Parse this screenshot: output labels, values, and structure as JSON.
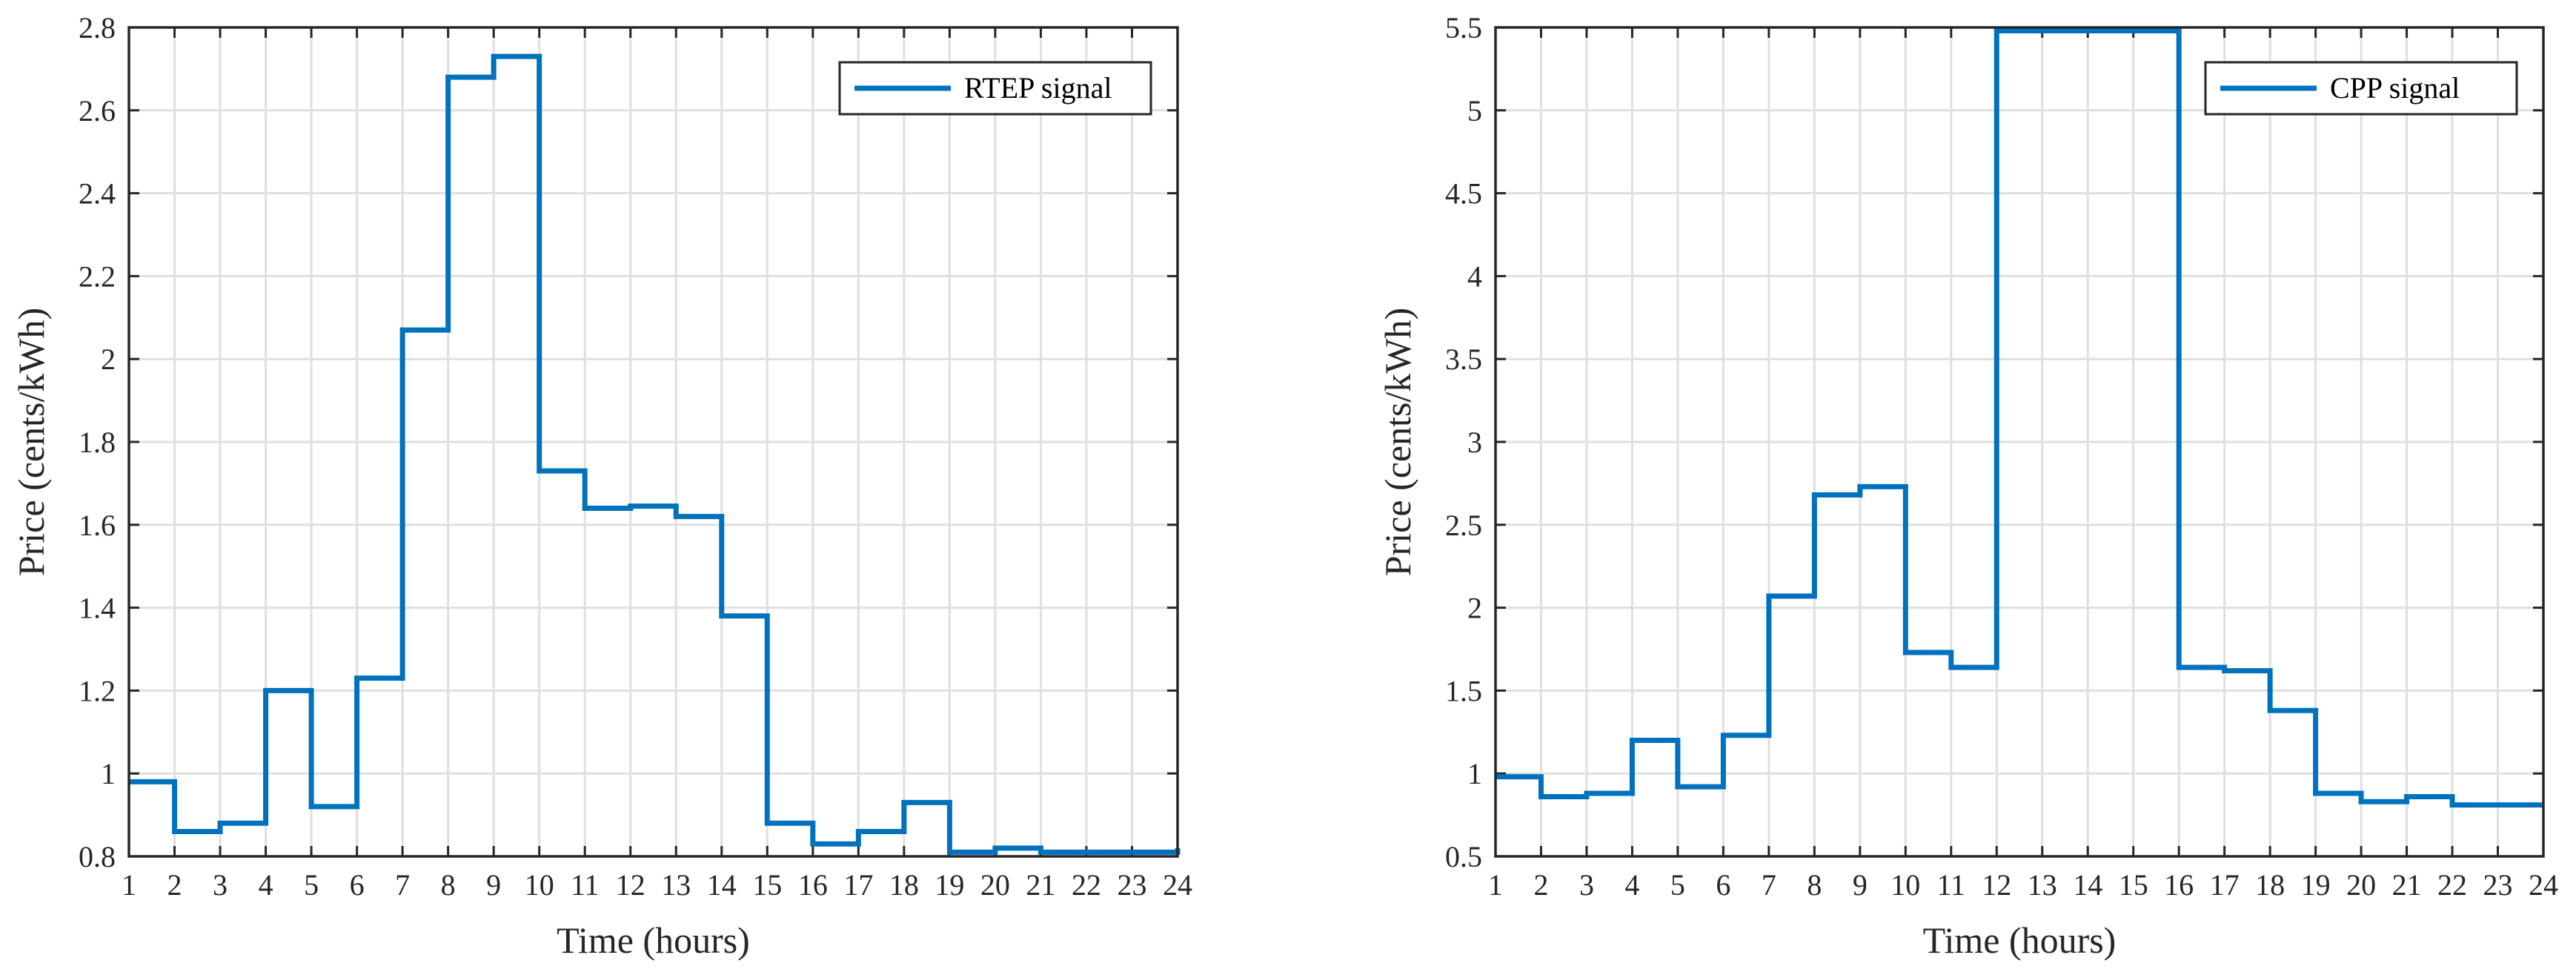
{
  "chart_data": [
    {
      "type": "line",
      "step": "post",
      "x": [
        1,
        2,
        3,
        4,
        5,
        6,
        7,
        8,
        9,
        10,
        11,
        12,
        13,
        14,
        15,
        16,
        17,
        18,
        19,
        20,
        21,
        22,
        23,
        24
      ],
      "series": [
        {
          "name": "RTEP signal",
          "values": [
            0.98,
            0.86,
            0.88,
            1.2,
            0.92,
            1.23,
            2.07,
            2.68,
            2.73,
            1.73,
            1.64,
            1.645,
            1.62,
            1.38,
            0.88,
            0.83,
            0.86,
            0.93,
            0.81,
            0.82,
            0.81,
            0.81,
            0.81,
            0.82
          ]
        }
      ],
      "title": "",
      "xlabel": "Time (hours)",
      "ylabel": "Price (cents/kWh)",
      "xlim": [
        1,
        24
      ],
      "ylim": [
        0.8,
        2.8
      ],
      "xticks": [
        "1",
        "2",
        "3",
        "4",
        "5",
        "6",
        "7",
        "8",
        "9",
        "10",
        "11",
        "12",
        "13",
        "14",
        "15",
        "16",
        "17",
        "18",
        "19",
        "20",
        "21",
        "22",
        "23",
        "24"
      ],
      "yticks": [
        "0.8",
        "1",
        "1.2",
        "1.4",
        "1.6",
        "1.8",
        "2",
        "2.2",
        "2.4",
        "2.6",
        "2.8"
      ],
      "ytick_values": [
        0.8,
        1.0,
        1.2,
        1.4,
        1.6,
        1.8,
        2.0,
        2.2,
        2.4,
        2.6,
        2.8
      ],
      "grid": true,
      "legend": "top-right",
      "color": "#0072BD"
    },
    {
      "type": "line",
      "step": "post",
      "x": [
        1,
        2,
        3,
        4,
        5,
        6,
        7,
        8,
        9,
        10,
        11,
        12,
        13,
        14,
        15,
        16,
        17,
        18,
        19,
        20,
        21,
        22,
        23,
        24
      ],
      "series": [
        {
          "name": "CPP signal",
          "values": [
            0.98,
            0.86,
            0.88,
            1.2,
            0.92,
            1.23,
            2.07,
            2.68,
            2.73,
            1.73,
            1.64,
            5.48,
            5.48,
            5.48,
            5.48,
            1.64,
            1.62,
            1.38,
            0.88,
            0.83,
            0.86,
            0.81,
            0.81,
            0.81
          ]
        }
      ],
      "title": "",
      "xlabel": "Time (hours)",
      "ylabel": "Price (cents/kWh)",
      "xlim": [
        1,
        24
      ],
      "ylim": [
        0.5,
        5.5
      ],
      "xticks": [
        "1",
        "2",
        "3",
        "4",
        "5",
        "6",
        "7",
        "8",
        "9",
        "10",
        "11",
        "12",
        "13",
        "14",
        "15",
        "16",
        "17",
        "18",
        "19",
        "20",
        "21",
        "22",
        "23",
        "24"
      ],
      "yticks": [
        "0.5",
        "1",
        "1.5",
        "2",
        "2.5",
        "3",
        "3.5",
        "4",
        "4.5",
        "5",
        "5.5"
      ],
      "ytick_values": [
        0.5,
        1.0,
        1.5,
        2.0,
        2.5,
        3.0,
        3.5,
        4.0,
        4.5,
        5.0,
        5.5
      ],
      "grid": true,
      "legend": "top-right",
      "color": "#0072BD"
    }
  ]
}
